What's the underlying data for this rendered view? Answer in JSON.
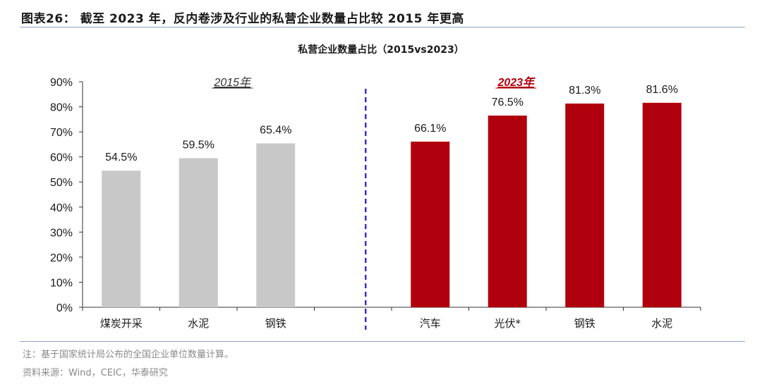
{
  "figure": {
    "title": "图表26：  截至 2023 年，反内卷涉及行业的私营企业数量占比较 2015 年更高",
    "note": "注：基于国家统计局公布的全国企业单位数量计算。",
    "source": "资料来源：Wind，CEIC，华泰研究"
  },
  "chart_data": {
    "type": "bar",
    "title": "私营企业数量占比（2015vs2023）",
    "ylim": [
      0,
      90
    ],
    "yticks": [
      "0%",
      "10%",
      "20%",
      "30%",
      "40%",
      "50%",
      "60%",
      "70%",
      "80%",
      "90%"
    ],
    "grid": false,
    "groups": [
      {
        "name": "2015年",
        "color": "#c8c8c8",
        "label_color": "#333333",
        "categories": [
          "煤炭开采",
          "水泥",
          "钢铁"
        ],
        "values": [
          54.5,
          59.5,
          65.4
        ],
        "labels": [
          "54.5%",
          "59.5%",
          "65.4%"
        ]
      },
      {
        "name": "2023年",
        "color": "#b0000e",
        "label_color": "#b0000e",
        "categories": [
          "汽车",
          "光伏*",
          "钢铁",
          "水泥"
        ],
        "values": [
          66.1,
          76.5,
          81.3,
          81.6
        ],
        "labels": [
          "66.1%",
          "76.5%",
          "81.3%",
          "81.6%"
        ]
      }
    ],
    "divider_color": "#3a2fd6"
  }
}
